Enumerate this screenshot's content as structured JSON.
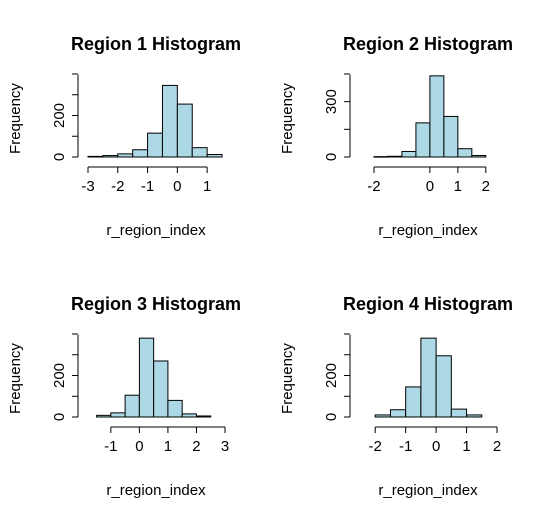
{
  "colors": {
    "bar_fill": "#add8e6",
    "bar_stroke": "#000000",
    "axis": "#000000",
    "background": "#ffffff"
  },
  "chart_data": [
    {
      "type": "bar",
      "title": "Region 1 Histogram",
      "xlabel": "r_region_index",
      "ylabel": "Frequency",
      "bin_edges": [
        -3,
        -2.5,
        -2,
        -1.5,
        -1,
        -0.5,
        0,
        0.5,
        1,
        1.5
      ],
      "values": [
        3,
        7,
        15,
        35,
        115,
        345,
        255,
        45,
        12,
        3
      ],
      "xticks": [
        -3,
        -2,
        -1,
        0,
        1
      ],
      "xtick_labels": [
        "-3",
        "-2",
        "-1",
        "0",
        "1"
      ],
      "yticks": [
        0,
        200
      ],
      "ytick_labels": [
        "0",
        "200"
      ],
      "ylim": [
        0,
        400
      ]
    },
    {
      "type": "bar",
      "title": "Region 2 Histogram",
      "xlabel": "r_region_index",
      "ylabel": "Frequency",
      "bin_edges": [
        -2,
        -1.5,
        -1,
        -0.5,
        0,
        0.5,
        1,
        1.5,
        2
      ],
      "values": [
        2,
        4,
        30,
        185,
        440,
        220,
        45,
        8
      ],
      "xticks": [
        -2,
        0,
        1,
        2
      ],
      "xtick_labels": [
        "-2",
        "0",
        "1",
        "2"
      ],
      "yticks": [
        0,
        300
      ],
      "ytick_labels": [
        "0",
        "300"
      ],
      "ylim": [
        0,
        450
      ]
    },
    {
      "type": "bar",
      "title": "Region 3 Histogram",
      "xlabel": "r_region_index",
      "ylabel": "Frequency",
      "bin_edges": [
        -1.5,
        -1,
        -0.5,
        0,
        0.5,
        1,
        1.5,
        2,
        2.5
      ],
      "values": [
        8,
        20,
        105,
        380,
        270,
        80,
        15,
        5
      ],
      "xticks": [
        -1,
        0,
        1,
        2,
        3
      ],
      "xtick_labels": [
        "-1",
        "0",
        "1",
        "2",
        "3"
      ],
      "yticks": [
        0,
        200
      ],
      "ytick_labels": [
        "0",
        "200"
      ],
      "ylim": [
        0,
        400
      ]
    },
    {
      "type": "bar",
      "title": "Region 4 Histogram",
      "xlabel": "r_region_index",
      "ylabel": "Frequency",
      "bin_edges": [
        -2,
        -1.5,
        -1,
        -0.5,
        0,
        0.5,
        1,
        1.5
      ],
      "values": [
        10,
        35,
        145,
        380,
        295,
        38,
        10
      ],
      "xticks": [
        -2,
        -1,
        0,
        1,
        2
      ],
      "xtick_labels": [
        "-2",
        "-1",
        "0",
        "1",
        "2"
      ],
      "yticks": [
        0,
        200
      ],
      "ytick_labels": [
        "0",
        "200"
      ],
      "ylim": [
        0,
        400
      ]
    }
  ]
}
